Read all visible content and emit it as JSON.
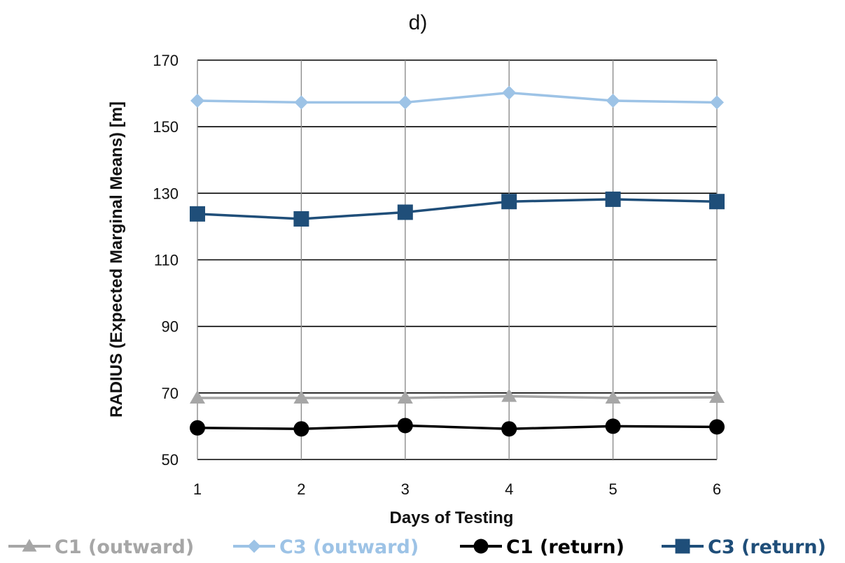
{
  "chart_data": {
    "type": "line",
    "panel_label": "d)",
    "xlabel": "Days of Testing",
    "ylabel": "RADIUS (Expected Marginal Means) [m]",
    "x": [
      1,
      2,
      3,
      4,
      5,
      6
    ],
    "x_tick_labels": [
      "1",
      "2",
      "3",
      "4",
      "5",
      "6"
    ],
    "ylim": [
      50,
      170
    ],
    "y_ticks": [
      50,
      70,
      90,
      110,
      130,
      150,
      170
    ],
    "y_tick_labels": [
      "50",
      "70",
      "90",
      "110",
      "130",
      "150",
      "170"
    ],
    "grid": true,
    "legend_position": "bottom",
    "series": [
      {
        "name": "C1 (outward)",
        "color": "#a6a6a6",
        "marker": "triangle",
        "values": [
          68.5,
          68.5,
          68.5,
          69,
          68.5,
          68.7
        ]
      },
      {
        "name": "C3 (outward)",
        "color": "#9dc3e6",
        "marker": "diamond",
        "values": [
          157.8,
          157.3,
          157.3,
          160.2,
          157.8,
          157.3
        ]
      },
      {
        "name": "C1 (return)",
        "color": "#000000",
        "marker": "circle",
        "values": [
          59.5,
          59.2,
          60.2,
          59.2,
          60,
          59.8
        ]
      },
      {
        "name": "C3 (return)",
        "color": "#1f4e79",
        "marker": "square",
        "values": [
          123.8,
          122.3,
          124.3,
          127.5,
          128.2,
          127.5
        ]
      }
    ]
  }
}
